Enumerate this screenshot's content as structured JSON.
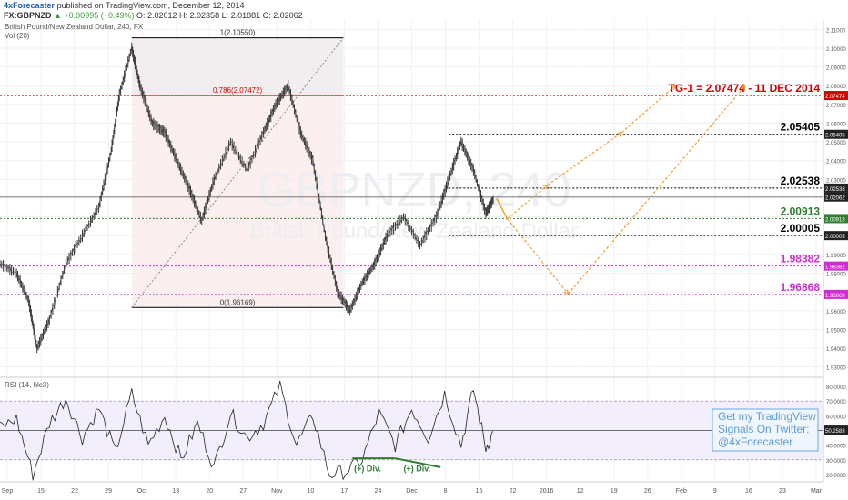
{
  "header": {
    "author": "4xForecaster",
    "published": "published on TradingView.com, December 12, 2014",
    "symbol": "FX:GBPNZD",
    "change": "▲ +0.00995 (+0.49%)",
    "ohlc": "O: 2.02012 H: 2.02358 L: 2.01881 C: 2.02062"
  },
  "chart_data": {
    "type": "line",
    "title": "British Pound/New Zealand Dollar, 240, FX",
    "volume_label": "Vol (20)",
    "watermark_symbol": "GBPNZD, 240",
    "watermark_name": "British Pound/New Zealand Dollar",
    "y_ticks": [
      "2.11000",
      "2.10000",
      "2.09000",
      "2.08000",
      "2.07000",
      "2.06000",
      "2.05000",
      "2.04000",
      "2.03000",
      "2.02000",
      "2.01000",
      "2.00000",
      "1.99000",
      "1.98000",
      "1.97000",
      "1.96000",
      "1.95000",
      "1.94000",
      "1.93000"
    ],
    "ylim": [
      1.925,
      2.115
    ],
    "x_ticks": [
      "Sep",
      "15",
      "22",
      "29",
      "Oct",
      "13",
      "20",
      "27",
      "Nov",
      "10",
      "17",
      "24",
      "Dec",
      "8",
      "15",
      "22",
      "2016",
      "12",
      "19",
      "26",
      "Feb",
      "9",
      "16",
      "23",
      "Mar"
    ],
    "price_path": [
      [
        0.0,
        1.985
      ],
      [
        0.02,
        1.98
      ],
      [
        0.035,
        1.965
      ],
      [
        0.045,
        1.94
      ],
      [
        0.06,
        1.955
      ],
      [
        0.08,
        1.985
      ],
      [
        0.1,
        2.0
      ],
      [
        0.12,
        2.015
      ],
      [
        0.135,
        2.045
      ],
      [
        0.145,
        2.075
      ],
      [
        0.16,
        2.1
      ],
      [
        0.17,
        2.08
      ],
      [
        0.185,
        2.06
      ],
      [
        0.2,
        2.055
      ],
      [
        0.215,
        2.04
      ],
      [
        0.23,
        2.025
      ],
      [
        0.245,
        2.008
      ],
      [
        0.26,
        2.03
      ],
      [
        0.28,
        2.05
      ],
      [
        0.3,
        2.035
      ],
      [
        0.32,
        2.055
      ],
      [
        0.335,
        2.07
      ],
      [
        0.35,
        2.08
      ],
      [
        0.365,
        2.055
      ],
      [
        0.38,
        2.04
      ],
      [
        0.395,
        2.0
      ],
      [
        0.41,
        1.97
      ],
      [
        0.425,
        1.96
      ],
      [
        0.44,
        1.975
      ],
      [
        0.455,
        1.985
      ],
      [
        0.47,
        2.0
      ],
      [
        0.49,
        2.01
      ],
      [
        0.51,
        1.995
      ],
      [
        0.53,
        2.01
      ],
      [
        0.545,
        2.03
      ],
      [
        0.56,
        2.05
      ],
      [
        0.575,
        2.035
      ],
      [
        0.59,
        2.012
      ],
      [
        0.6,
        2.02
      ]
    ],
    "fib": {
      "level_1_label": "1(2.10550)",
      "level_1": 2.1055,
      "level_0786_label": "0.786(2.07472)",
      "level_0786": 2.07472,
      "level_0_label": "0(1.96169)",
      "level_0": 1.96169
    },
    "levels": [
      {
        "value": 2.05405,
        "label": "2.05405",
        "color": "#000000",
        "tag": "2.05405"
      },
      {
        "value": 2.02538,
        "label": "2.02538",
        "color": "#000000",
        "tag": "2.02538"
      },
      {
        "value": 2.02062,
        "label": "",
        "color": "#000000",
        "tag": "2.02062"
      },
      {
        "value": 2.00913,
        "label": "2.00913",
        "color": "#2e7d32",
        "tag": "2.00913"
      },
      {
        "value": 2.00005,
        "label": "2.00005",
        "color": "#000000",
        "tag": "2.00005"
      },
      {
        "value": 1.98382,
        "label": "1.98382",
        "color": "#d12cd1",
        "tag": "1.98382"
      },
      {
        "value": 1.96868,
        "label": "1.96868",
        "color": "#d12cd1",
        "tag": "1.96868"
      }
    ],
    "target": {
      "value": 2.07474,
      "label": "TG-1 = 2.07474 - 11 DEC 2014",
      "color": "#d40000",
      "tag": "2.07474"
    },
    "projection_color": "#f0a030",
    "rsi": {
      "label": "RSI (14, hlc3)",
      "ticks": [
        "80.0000",
        "70.0000",
        "60.0000",
        "50.0000",
        "40.0000",
        "30.0000",
        "20.0000"
      ],
      "ylim": [
        15,
        85
      ],
      "last_tag": "50.2583",
      "overbought": 70,
      "oversold": 30,
      "divergence_labels": [
        "(+) Div.",
        "(+) Div."
      ],
      "path": [
        [
          0.0,
          52
        ],
        [
          0.02,
          58
        ],
        [
          0.04,
          20
        ],
        [
          0.06,
          55
        ],
        [
          0.08,
          72
        ],
        [
          0.1,
          45
        ],
        [
          0.12,
          65
        ],
        [
          0.14,
          35
        ],
        [
          0.16,
          75
        ],
        [
          0.18,
          40
        ],
        [
          0.2,
          60
        ],
        [
          0.22,
          30
        ],
        [
          0.24,
          55
        ],
        [
          0.26,
          25
        ],
        [
          0.28,
          62
        ],
        [
          0.3,
          45
        ],
        [
          0.32,
          55
        ],
        [
          0.34,
          80
        ],
        [
          0.36,
          40
        ],
        [
          0.38,
          60
        ],
        [
          0.4,
          20
        ],
        [
          0.42,
          22
        ],
        [
          0.44,
          30
        ],
        [
          0.46,
          62
        ],
        [
          0.48,
          40
        ],
        [
          0.5,
          65
        ],
        [
          0.52,
          45
        ],
        [
          0.54,
          75
        ],
        [
          0.56,
          40
        ],
        [
          0.575,
          78
        ],
        [
          0.59,
          38
        ],
        [
          0.6,
          50
        ]
      ]
    },
    "promo": [
      "Get my TradingView",
      "Signals On Twitter:",
      "@4xForecaster"
    ]
  }
}
